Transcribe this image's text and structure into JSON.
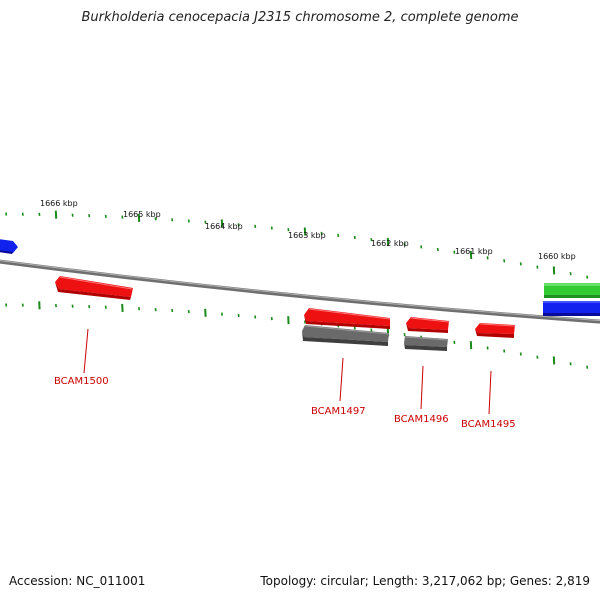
{
  "title": "Burkholderia cenocepacia J2315 chromosome 2, complete genome",
  "footer": {
    "accession": "Accession: NC_011001",
    "stats": "Topology: circular; Length: 3,217,062 bp; Genes: 2,819"
  },
  "colors": {
    "gene_red": "#ee1111",
    "rna_gray": "#666666",
    "gene_green": "#33cc33",
    "gene_blue": "#1122ee",
    "backbone": "#808080",
    "tick_green": "#1a8a1a",
    "label_red": "#cc0000"
  },
  "scale_labels": [
    "1666 kbp",
    "1665 kbp",
    "1664 kbp",
    "1663 kbp",
    "1662 kbp",
    "1661 kbp",
    "1660 kbp"
  ],
  "gene_labels": [
    "BCAM1500",
    "BCAM1497",
    "BCAM1496",
    "BCAM1495"
  ]
}
